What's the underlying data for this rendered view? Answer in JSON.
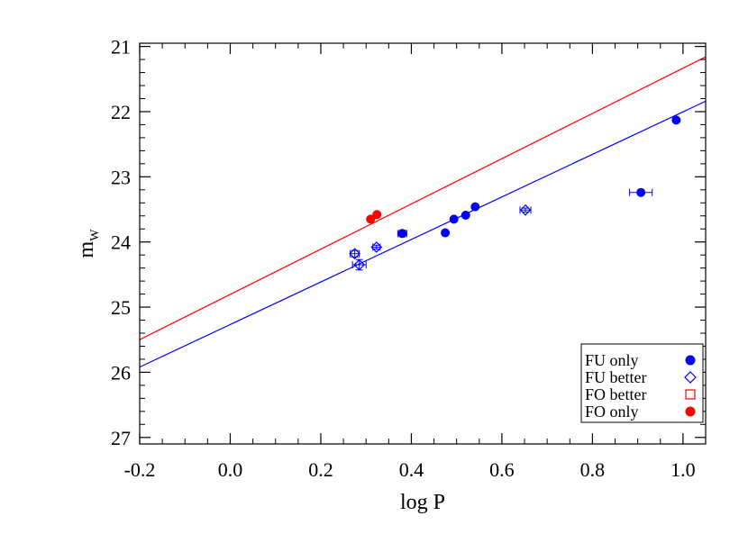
{
  "chart_data": {
    "type": "scatter",
    "title": "",
    "xlabel": "log P",
    "ylabel": {
      "main": "m",
      "sub": "W"
    },
    "xlim": [
      -0.2,
      1.05
    ],
    "ylim": [
      27.1,
      20.95
    ],
    "y_inverted": true,
    "grid": false,
    "legend_position": "bottom-right",
    "x_ticks": [
      "-0.2",
      "0.0",
      "0.2",
      "0.4",
      "0.6",
      "0.8",
      "1.0"
    ],
    "x_tick_values": [
      -0.2,
      0.0,
      0.2,
      0.4,
      0.6,
      0.8,
      1.0
    ],
    "y_ticks": [
      "21",
      "22",
      "23",
      "24",
      "25",
      "26",
      "27"
    ],
    "y_tick_values": [
      21,
      22,
      23,
      24,
      25,
      26,
      27
    ],
    "legend": [
      {
        "label": "FU only",
        "marker": "filled-circle",
        "color": "#0000ff"
      },
      {
        "label": "FU better",
        "marker": "open-diamond",
        "color": "#0000ff"
      },
      {
        "label": "FO better",
        "marker": "open-square",
        "color": "#ff0000"
      },
      {
        "label": "FO only",
        "marker": "filled-circle",
        "color": "#ff0000"
      }
    ],
    "series": [
      {
        "name": "FU only",
        "marker": "filled-circle",
        "color": "#0000ff",
        "points": [
          {
            "x": 0.38,
            "y": 23.87,
            "xerr": 0.01,
            "yerr": 0.05
          },
          {
            "x": 0.475,
            "y": 23.86,
            "xerr": 0,
            "yerr": 0
          },
          {
            "x": 0.494,
            "y": 23.65,
            "xerr": 0,
            "yerr": 0
          },
          {
            "x": 0.52,
            "y": 23.59,
            "xerr": 0,
            "yerr": 0
          },
          {
            "x": 0.541,
            "y": 23.46,
            "xerr": 0,
            "yerr": 0
          },
          {
            "x": 0.907,
            "y": 23.24,
            "xerr": 0.025,
            "yerr": 0
          },
          {
            "x": 0.985,
            "y": 22.13,
            "xerr": 0,
            "yerr": 0
          }
        ]
      },
      {
        "name": "FU better",
        "marker": "open-diamond",
        "color": "#0000ff",
        "points": [
          {
            "x": 0.275,
            "y": 24.18,
            "xerr": 0.01,
            "yerr": 0.05
          },
          {
            "x": 0.285,
            "y": 24.35,
            "xerr": 0.015,
            "yerr": 0.08
          },
          {
            "x": 0.323,
            "y": 24.08,
            "xerr": 0.008,
            "yerr": 0.03
          },
          {
            "x": 0.652,
            "y": 23.51,
            "xerr": 0.012,
            "yerr": 0.03
          }
        ]
      },
      {
        "name": "FO better",
        "marker": "open-square",
        "color": "#ff0000",
        "points": []
      },
      {
        "name": "FO only",
        "marker": "filled-circle",
        "color": "#ff0000",
        "points": [
          {
            "x": 0.31,
            "y": 23.65,
            "xerr": 0,
            "yerr": 0
          },
          {
            "x": 0.324,
            "y": 23.58,
            "xerr": 0,
            "yerr": 0
          }
        ]
      }
    ],
    "lines": [
      {
        "color": "#0000ff",
        "x": [
          -0.2,
          1.05
        ],
        "y": [
          25.92,
          21.84
        ]
      },
      {
        "color": "#ff0000",
        "x": [
          -0.2,
          1.05
        ],
        "y": [
          25.5,
          21.16
        ]
      }
    ]
  }
}
